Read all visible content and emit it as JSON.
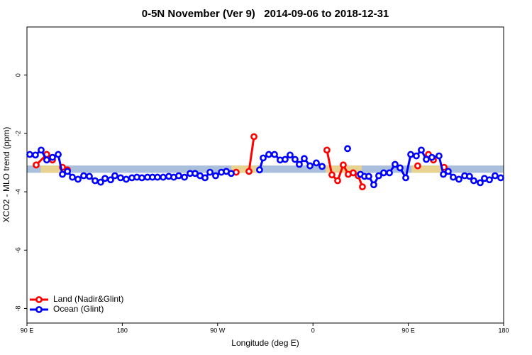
{
  "chart_data": {
    "type": "line",
    "title": "0-5N November (Ver 9)   2014-09-06 to 2018-12-31",
    "x_label": "Longitude (deg E)",
    "y_label": "XCO2 - MLO trend (ppm)",
    "xlim": [
      90,
      540
    ],
    "xticks": [
      {
        "value": 90,
        "label": "90 E"
      },
      180,
      {
        "value": 270,
        "label": "90 W"
      },
      {
        "value": 360,
        "label": "0"
      },
      {
        "value": 450,
        "label": "90 E"
      },
      {
        "value": 540,
        "label": "180"
      }
    ],
    "ylim": [
      -8.5,
      1.65
    ],
    "yticks": [
      0,
      -2,
      -4,
      -6,
      -8
    ],
    "band": [
      -3.35,
      -3.1
    ],
    "band_color": "#a9bfdc",
    "land_spans": [
      [
        103,
        125
      ],
      [
        283,
        308
      ],
      [
        372,
        406
      ],
      [
        453,
        485
      ]
    ],
    "land_span_color": "#f3d585",
    "legend": "bottomleft",
    "series": [
      {
        "name": "Land (Nadir&Glint)",
        "color": "#ff0000",
        "x": [
          98.7,
          108.7,
          114.1,
          null,
          123.5,
          128.2,
          null,
          287.5,
          null,
          299.6,
          304.3,
          null,
          373.2,
          377.9,
          383.3,
          388.6,
          393.3,
          398.0,
          402.7,
          406.7,
          null,
          458.9,
          null,
          469.0,
          473.7,
          null,
          483.8
        ],
        "values": [
          -3.08,
          -2.72,
          -2.91,
          null,
          -3.16,
          -3.25,
          null,
          -3.33,
          null,
          -3.3,
          -2.11,
          null,
          -2.57,
          -3.42,
          -3.62,
          -3.08,
          -3.4,
          -3.35,
          -3.45,
          -3.83,
          null,
          -3.11,
          null,
          -2.72,
          -2.91,
          null,
          -3.16
        ]
      },
      {
        "name": "Ocean (Glint)",
        "color": "#0000ff",
        "x": [
          92.7,
          98.0,
          103.4,
          108.7,
          114.1,
          119.5,
          123.5,
          128.2,
          132.9,
          138.2,
          143.6,
          148.9,
          154.3,
          159.6,
          163.7,
          169.0,
          173.0,
          178.4,
          183.7,
          189.1,
          193.8,
          198.5,
          203.8,
          208.5,
          213.2,
          218.6,
          223.9,
          228.6,
          233.3,
          238.7,
          244.0,
          248.7,
          253.4,
          258.1,
          262.8,
          268.1,
          273.5,
          278.2,
          282.8,
          null,
          309.6,
          313.0,
          318.3,
          323.7,
          329.0,
          333.7,
          338.4,
          343.1,
          347.1,
          351.8,
          357.2,
          363.2,
          368.6,
          null,
          392.7,
          null,
          404.8,
          408.7,
          412.7,
          417.4,
          422.1,
          426.8,
          432.2,
          437.5,
          442.2,
          447.6,
          452.3,
          457.6,
          462.3,
          467.0,
          472.3,
          479.0,
          483.1,
          487.7,
          492.4,
          497.8,
          503.2,
          507.8,
          511.8,
          517.9,
          521.9,
          526.6,
          531.9,
          537.3
        ],
        "values": [
          -2.72,
          -2.74,
          -2.57,
          -2.91,
          -2.82,
          -2.72,
          -3.4,
          -3.3,
          -3.5,
          -3.57,
          -3.45,
          -3.47,
          -3.62,
          -3.67,
          -3.54,
          -3.59,
          -3.45,
          -3.52,
          -3.57,
          -3.52,
          -3.5,
          -3.52,
          -3.5,
          -3.5,
          -3.5,
          -3.5,
          -3.47,
          -3.5,
          -3.45,
          -3.5,
          -3.37,
          -3.37,
          -3.45,
          -3.52,
          -3.33,
          -3.45,
          -3.33,
          -3.3,
          -3.37,
          null,
          -3.25,
          -2.84,
          -2.72,
          -2.72,
          -2.91,
          -2.89,
          -2.74,
          -2.89,
          -3.06,
          -2.86,
          -3.11,
          -3.01,
          -3.13,
          null,
          -2.52,
          null,
          -3.4,
          -3.47,
          -3.47,
          -3.76,
          -3.45,
          -3.35,
          -3.35,
          -3.06,
          -3.18,
          -3.52,
          -2.72,
          -2.77,
          -2.57,
          -2.89,
          -2.82,
          -2.77,
          -3.4,
          -3.3,
          -3.5,
          -3.57,
          -3.45,
          -3.47,
          -3.62,
          -3.69,
          -3.54,
          -3.59,
          -3.45,
          -3.52
        ]
      }
    ]
  }
}
